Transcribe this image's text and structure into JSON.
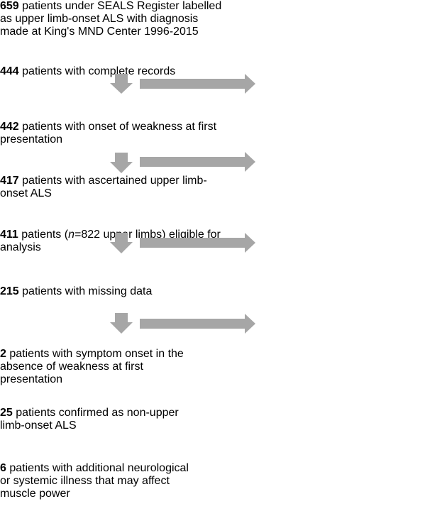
{
  "left_boxes": [
    {
      "count": "659",
      "text": "patients under SEALS Register labelled as upper limb-onset ALS with diagnosis made at King's MND Center 1996-2015"
    },
    {
      "count": "444",
      "text": "patients with complete records"
    },
    {
      "count": "442",
      "text": "patients with onset of weakness at first presentation"
    },
    {
      "count": "417",
      "text": "patients with ascertained upper limb-onset ALS"
    },
    {
      "count": "411",
      "text": "patients (",
      "italic": "n",
      "text_after": "=822 upper limbs) eligible for analysis"
    }
  ],
  "right_boxes": [
    {
      "count": "215",
      "text": "patients with missing data"
    },
    {
      "count": "2",
      "text": "patients with symptom onset in the absence of weakness at first presentation"
    },
    {
      "count": "25",
      "text": "patients confirmed as non-upper limb-onset ALS"
    },
    {
      "count": "6",
      "text": "patients with additional neurological or systemic illness that may affect muscle power"
    }
  ]
}
